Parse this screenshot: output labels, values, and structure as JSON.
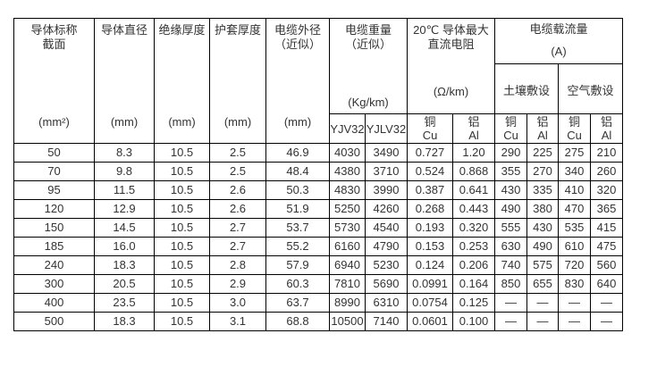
{
  "colors": {
    "background": "#ffffff",
    "border": "#000000",
    "text": "#333333"
  },
  "table": {
    "columns": [
      {
        "title_line1": "导体标称",
        "title_line2": "截面",
        "unit": "(mm²)"
      },
      {
        "title_line1": "导体直径",
        "unit": "(mm)"
      },
      {
        "title_line1": "绝缘厚度",
        "unit": "(mm)"
      },
      {
        "title_line1": "护套厚度",
        "unit": "(mm)"
      },
      {
        "title_line1": "电缆外径",
        "title_line2": "（近似）",
        "unit": "(mm)"
      }
    ],
    "weight_group": {
      "title_line1": "电缆重量",
      "title_line2": "（近似）",
      "unit": "(Kg/km)",
      "sub1": "YJV32",
      "sub2": "YJLV32"
    },
    "resistance_group": {
      "title_line1": "20℃ 导体最大",
      "title_line2": "直流电阻",
      "unit": "(Ω/km)",
      "cu_line1": "铜",
      "cu_line2": "Cu",
      "al_line1": "铝",
      "al_line2": "Al"
    },
    "ampacity_group": {
      "title": "电缆载流量",
      "unit": "(A)",
      "soil_title": "土壤敷设",
      "air_title": "空气敷设",
      "cu_line1": "铜",
      "cu_line2": "Cu",
      "al_line1": "铝",
      "al_line2": "Al"
    },
    "rows": [
      [
        "50",
        "8.3",
        "10.5",
        "2.5",
        "46.9",
        "4030",
        "3490",
        "0.727",
        "1.20",
        "290",
        "225",
        "275",
        "210"
      ],
      [
        "70",
        "9.8",
        "10.5",
        "2.5",
        "48.4",
        "4380",
        "3710",
        "0.524",
        "0.868",
        "355",
        "270",
        "340",
        "260"
      ],
      [
        "95",
        "11.5",
        "10.5",
        "2.6",
        "50.3",
        "4830",
        "3990",
        "0.387",
        "0.641",
        "430",
        "335",
        "410",
        "320"
      ],
      [
        "120",
        "12.9",
        "10.5",
        "2.6",
        "51.9",
        "5250",
        "4260",
        "0.268",
        "0.443",
        "490",
        "380",
        "470",
        "365"
      ],
      [
        "150",
        "14.5",
        "10.5",
        "2.7",
        "53.7",
        "5730",
        "4540",
        "0.193",
        "0.320",
        "555",
        "430",
        "535",
        "415"
      ],
      [
        "185",
        "16.0",
        "10.5",
        "2.7",
        "55.2",
        "6160",
        "4790",
        "0.153",
        "0.253",
        "630",
        "490",
        "610",
        "475"
      ],
      [
        "240",
        "18.3",
        "10.5",
        "2.8",
        "57.9",
        "6940",
        "5230",
        "0.124",
        "0.206",
        "740",
        "575",
        "720",
        "560"
      ],
      [
        "300",
        "20.5",
        "10.5",
        "2.9",
        "60.3",
        "7810",
        "5690",
        "0.0991",
        "0.164",
        "850",
        "655",
        "830",
        "640"
      ],
      [
        "400",
        "23.5",
        "10.5",
        "3.0",
        "63.7",
        "8990",
        "6310",
        "0.0754",
        "0.125",
        "—",
        "—",
        "—",
        "—"
      ],
      [
        "500",
        "18.3",
        "10.5",
        "3.1",
        "68.8",
        "10500",
        "7140",
        "0.0601",
        "0.100",
        "—",
        "—",
        "—",
        "—"
      ]
    ]
  }
}
